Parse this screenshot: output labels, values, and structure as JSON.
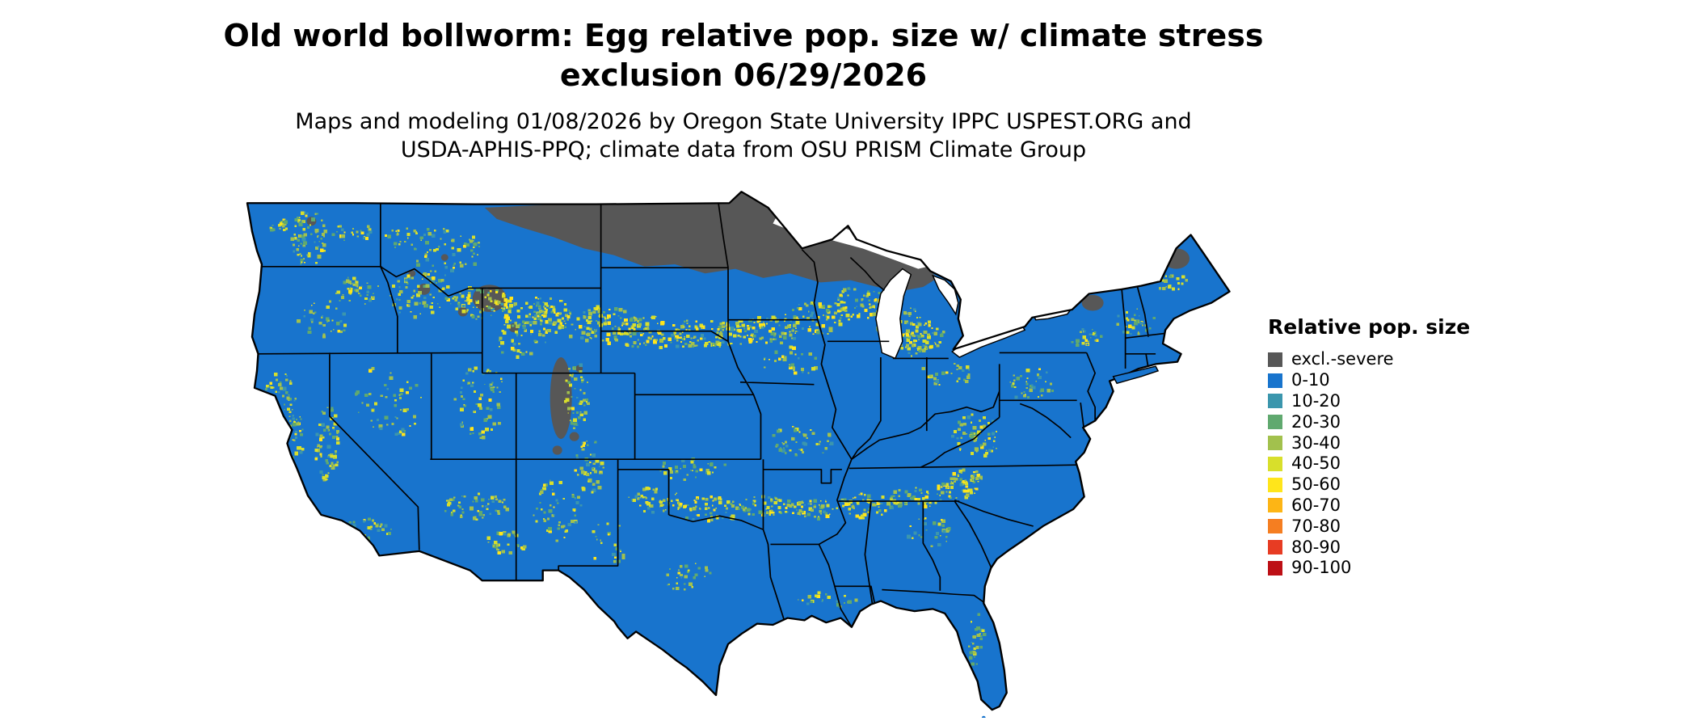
{
  "title": {
    "line1": "Old world bollworm: Egg relative pop. size w/ climate stress",
    "line2": "exclusion 06/29/2026"
  },
  "subtitle": {
    "line1": "Maps and modeling 01/08/2026 by Oregon State University IPPC USPEST.ORG and",
    "line2": "USDA-APHIS-PPQ; climate data from OSU PRISM Climate Group"
  },
  "legend": {
    "title": "Relative pop. size",
    "items": [
      {
        "label": "excl.-severe",
        "color": "#575757"
      },
      {
        "label": "0-10",
        "color": "#1874cd"
      },
      {
        "label": "10-20",
        "color": "#3b96ad"
      },
      {
        "label": "20-30",
        "color": "#60a96f"
      },
      {
        "label": "30-40",
        "color": "#a2c14d"
      },
      {
        "label": "40-50",
        "color": "#d8df2b"
      },
      {
        "label": "50-60",
        "color": "#ffe51b"
      },
      {
        "label": "60-70",
        "color": "#fdb515"
      },
      {
        "label": "70-80",
        "color": "#f57e21"
      },
      {
        "label": "80-90",
        "color": "#e73c23"
      },
      {
        "label": "90-100",
        "color": "#bd0f15"
      }
    ]
  },
  "map": {
    "region_label": "Contiguous United States",
    "base_color": "#1874cd",
    "excluded_color": "#575757",
    "state_border_color": "#000000",
    "water_color": "#ffffff"
  }
}
